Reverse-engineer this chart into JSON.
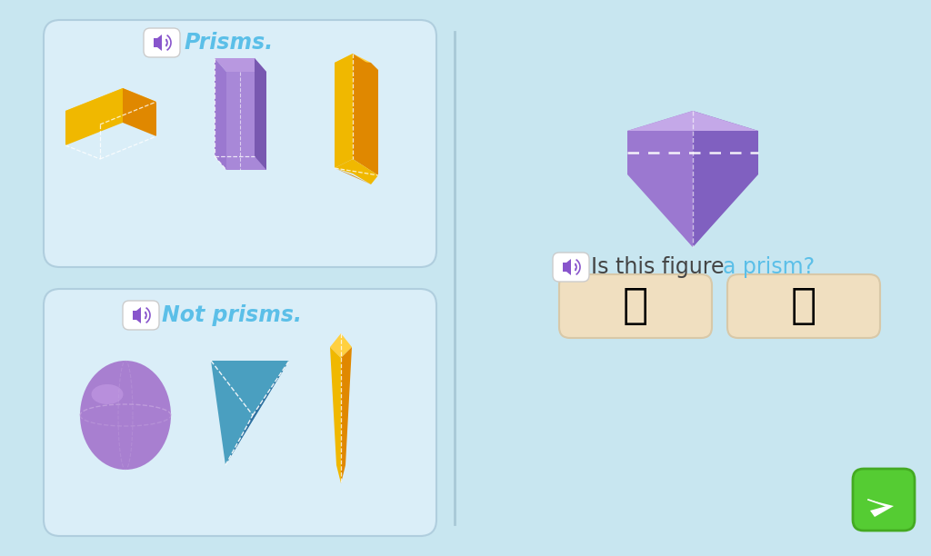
{
  "bg_color": "#c8e6f0",
  "panel_color": "#daeef8",
  "panel_border_color": "#b0cede",
  "prisms_title": "Prisms.",
  "not_prisms_title": "Not prisms.",
  "question_text": "Is this figure ",
  "question_highlight": "a prism?",
  "title_color": "#5bbfe8",
  "highlight_color": "#5bbfe8",
  "speaker_color": "#8855cc",
  "btn_color": "#f0dfc0",
  "btn_border": "#d8c8a8",
  "green_btn_color": "#55cc33",
  "green_btn_border": "#44aa22",
  "divider_color": "#9bbccc",
  "gold1": "#f0b800",
  "gold2": "#e08800",
  "gold3": "#ffd040",
  "purple1": "#9b78d0",
  "purple2": "#7858b0",
  "purple3": "#b898e0",
  "purple4": "#6848a0",
  "teal1": "#4a9fc0",
  "teal2": "#3070a0",
  "sphere_color": "#a87fd0",
  "dashed_color": "#ffffff"
}
